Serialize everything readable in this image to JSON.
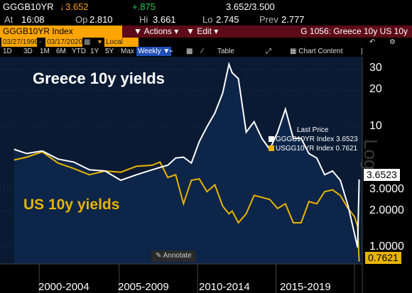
{
  "quote": {
    "ticker": "GGGB10YR",
    "last_prefix": "↓",
    "last": "3.652",
    "change": "+.875",
    "bid_ask": "3.652/3.500",
    "at_label": "At",
    "at_time": "16:08",
    "op_label": "Op",
    "open": "2.810",
    "hi_label": "Hi",
    "high": "3.661",
    "lo_label": "Lo",
    "low": "2.745",
    "prev_label": "Prev",
    "prev": "2.777"
  },
  "titlebar": {
    "security": "GGGB10YR Index",
    "actions_label": "Actions",
    "edit_label": "Edit",
    "title": "G 1056: Greece 10y US 10y"
  },
  "controls": {
    "start_date": "03/27/1998",
    "end_date": "03/17/2020",
    "currency": "Local CCY",
    "ranges": [
      "1D",
      "3D",
      "1M",
      "6M",
      "YTD",
      "1Y",
      "5Y",
      "Max"
    ],
    "interval": "Weekly",
    "table_label": "Table",
    "chart_content_label": "Chart Content"
  },
  "chart": {
    "greece_title": "Greece 10y yields",
    "us_title": "US 10y yields",
    "legend_header": "Last Price",
    "legend": [
      {
        "name": "GGGB10YR Index",
        "value": "3.6523",
        "color": "#ffffff"
      },
      {
        "name": "USGG10YR Index",
        "value": "0.7621",
        "color": "#e8b400"
      }
    ],
    "right_axis_labels": [
      "30",
      "20",
      "10",
      "3.0000",
      "2.0000",
      "1.0000"
    ],
    "last_greece": "3.6523",
    "last_us": "0.7621",
    "x_labels": [
      "2000-2004",
      "2005-2009",
      "2010-2014",
      "2015-2019"
    ],
    "annotate_label": "Annotate",
    "axis_watermark": "Log"
  },
  "chart_data": {
    "type": "area",
    "title": "",
    "xlabel": "",
    "ylabel": "",
    "y_scale": "log",
    "x": [
      1998.2,
      1999,
      2000,
      2001,
      2002,
      2003,
      2004,
      2005,
      2006,
      2007,
      2007.5,
      2008,
      2008.5,
      2009,
      2009.5,
      2010,
      2010.5,
      2011,
      2011.5,
      2011.9,
      2012.1,
      2012.5,
      2013,
      2013.5,
      2014,
      2014.5,
      2015,
      2015.5,
      2016,
      2016.5,
      2017,
      2017.5,
      2018,
      2018.5,
      2019,
      2019.5,
      2019.9,
      2020.1,
      2020.2
    ],
    "series": [
      {
        "name": "GGGB10YR Index",
        "values": [
          6.5,
          6.0,
          6.3,
          5.4,
          5.1,
          4.4,
          4.3,
          3.6,
          4.0,
          4.4,
          4.6,
          4.8,
          5.5,
          5.6,
          5.0,
          7.5,
          10,
          13,
          19,
          33,
          28,
          25,
          9,
          11,
          8.0,
          6.5,
          9,
          14,
          8,
          8,
          6,
          5.5,
          4.0,
          4.3,
          3.6,
          2.2,
          1.3,
          1.0,
          3.6523
        ]
      },
      {
        "name": "USGG10YR Index",
        "values": [
          5.3,
          5.6,
          6.2,
          5.0,
          4.5,
          4.0,
          4.3,
          4.2,
          4.7,
          4.8,
          5.1,
          3.8,
          4.0,
          2.3,
          3.6,
          3.7,
          2.9,
          3.3,
          2.2,
          1.9,
          2.0,
          1.6,
          1.9,
          2.7,
          2.6,
          2.5,
          2.1,
          2.3,
          1.6,
          1.6,
          2.4,
          2.3,
          2.9,
          3.0,
          2.7,
          2.1,
          1.8,
          1.5,
          0.7621
        ]
      }
    ],
    "ylim": [
      0.75,
      36
    ],
    "x_tick_groups": [
      "2000-2004",
      "2005-2009",
      "2010-2014",
      "2015-2019"
    ],
    "y_ticks": [
      1,
      2,
      3,
      10,
      20,
      30
    ]
  }
}
